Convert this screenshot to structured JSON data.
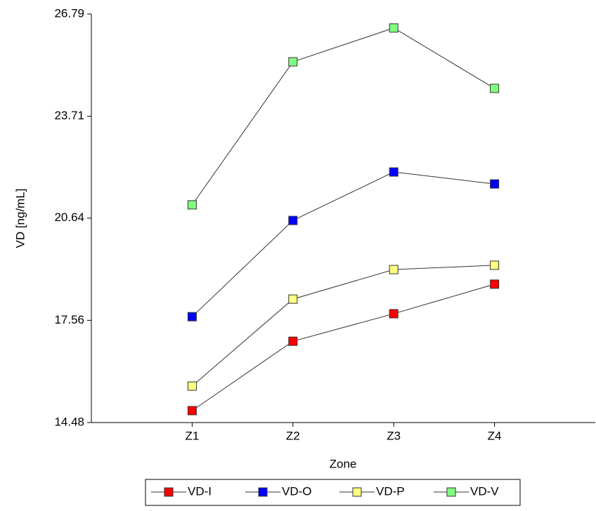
{
  "chart_data": {
    "type": "line",
    "x_label": "Zone",
    "y_label": "VD [ng/mL]",
    "categories": [
      "Z1",
      "Z2",
      "Z3",
      "Z4"
    ],
    "series": [
      {
        "name": "VD-I",
        "color": "#ff0000",
        "values": [
          14.84,
          16.93,
          17.76,
          18.65
        ]
      },
      {
        "name": "VD-O",
        "color": "#0000ff",
        "values": [
          17.67,
          20.57,
          22.03,
          21.67
        ]
      },
      {
        "name": "VD-P",
        "color": "#ffff80",
        "values": [
          15.58,
          18.2,
          19.09,
          19.22
        ]
      },
      {
        "name": "VD-V",
        "color": "#80ff80",
        "values": [
          21.04,
          25.35,
          26.37,
          24.55
        ]
      }
    ],
    "ylim": [
      14.48,
      26.79
    ],
    "yticks": [
      14.48,
      17.56,
      20.64,
      23.71,
      26.79
    ],
    "legend": "bottom"
  }
}
